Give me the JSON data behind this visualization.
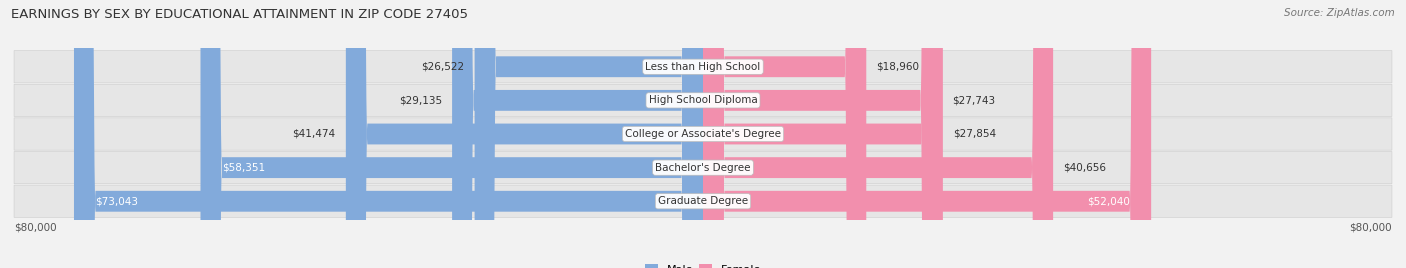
{
  "title": "EARNINGS BY SEX BY EDUCATIONAL ATTAINMENT IN ZIP CODE 27405",
  "source": "Source: ZipAtlas.com",
  "categories": [
    "Less than High School",
    "High School Diploma",
    "College or Associate's Degree",
    "Bachelor's Degree",
    "Graduate Degree"
  ],
  "male_values": [
    26522,
    29135,
    41474,
    58351,
    73043
  ],
  "female_values": [
    18960,
    27743,
    27854,
    40656,
    52040
  ],
  "max_value": 80000,
  "male_color": "#82AADB",
  "female_color": "#F28FAD",
  "background_color": "#F2F2F2",
  "row_light_color": "#ECECEC",
  "row_dark_color": "#E2E2E2",
  "title_fontsize": 9.5,
  "source_fontsize": 7.5,
  "bar_label_fontsize": 7.5,
  "category_fontsize": 7.5,
  "axis_label_fontsize": 7.5,
  "legend_fontsize": 8,
  "inside_label_threshold": 45000
}
